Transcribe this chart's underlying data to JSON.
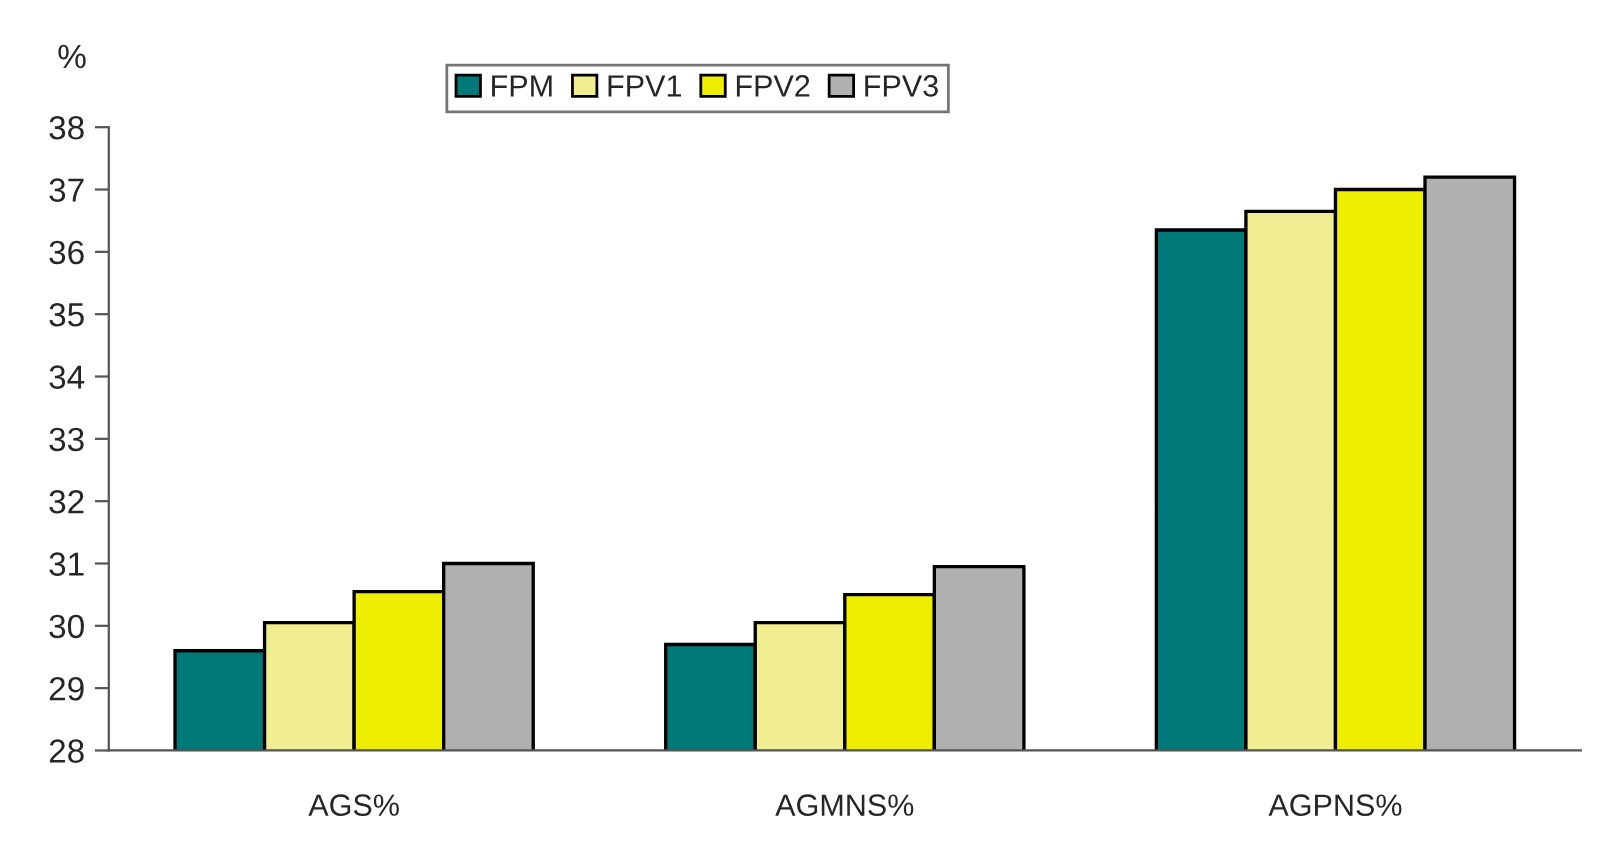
{
  "chart_data": {
    "type": "bar",
    "ylabel": "%",
    "categories": [
      "AGS%",
      "AGMNS%",
      "AGPNS%"
    ],
    "series": [
      {
        "name": "FPM",
        "color": "#007a78",
        "values": [
          29.6,
          29.7,
          36.35
        ]
      },
      {
        "name": "FPV1",
        "color": "#f0ee90",
        "values": [
          30.05,
          30.05,
          36.65
        ]
      },
      {
        "name": "FPV2",
        "color": "#eeee00",
        "values": [
          30.55,
          30.5,
          37.0
        ]
      },
      {
        "name": "FPV3",
        "color": "#b0b0b0",
        "values": [
          31.0,
          30.95,
          37.2
        ]
      }
    ],
    "ylim": [
      28,
      38
    ],
    "yticks": [
      28,
      29,
      30,
      31,
      32,
      33,
      34,
      35,
      36,
      37,
      38
    ],
    "grid": false,
    "legend": "top"
  }
}
